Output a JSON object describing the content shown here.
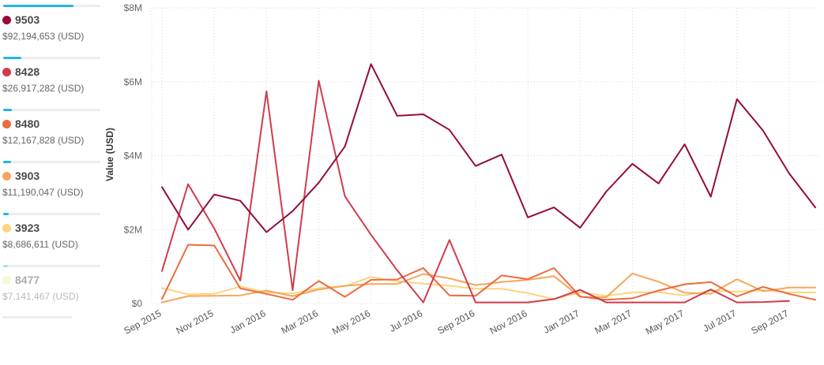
{
  "legend": [
    {
      "code": "9503",
      "amount": "$92,194,653 (USD)",
      "color": "#960b3e",
      "share": 0.72,
      "faded": false
    },
    {
      "code": "8428",
      "amount": "$26,917,282 (USD)",
      "color": "#d13b4d",
      "share": 0.19,
      "faded": false
    },
    {
      "code": "8480",
      "amount": "$12,167,828 (USD)",
      "color": "#ec6b3e",
      "share": 0.09,
      "faded": false
    },
    {
      "code": "3903",
      "amount": "$11,190,047 (USD)",
      "color": "#f6a65a",
      "share": 0.08,
      "faded": false
    },
    {
      "code": "3923",
      "amount": "$8,686,611 (USD)",
      "color": "#fbd57e",
      "share": 0.06,
      "faded": false
    },
    {
      "code": "8477",
      "amount": "$7,141,467 (USD)",
      "color": "#f4f1bf",
      "share": 0.05,
      "faded": true
    }
  ],
  "chart_data": {
    "type": "line",
    "ylabel": "Value (USD)",
    "xlabel": "",
    "ylim": [
      0,
      8000000
    ],
    "y_ticks": [
      0,
      2000000,
      4000000,
      6000000,
      8000000
    ],
    "y_tick_labels": [
      "$0",
      "$2M",
      "$4M",
      "$6M",
      "$8M"
    ],
    "x": [
      "2015-09",
      "2015-10",
      "2015-11",
      "2015-12",
      "2016-01",
      "2016-02",
      "2016-03",
      "2016-04",
      "2016-05",
      "2016-06",
      "2016-07",
      "2016-08",
      "2016-09",
      "2016-10",
      "2016-11",
      "2016-12",
      "2017-01",
      "2017-02",
      "2017-03",
      "2017-04",
      "2017-05",
      "2017-06",
      "2017-07",
      "2017-08",
      "2017-09",
      "2017-10"
    ],
    "x_tick_labels": [
      "Sep 2015",
      "Nov 2015",
      "Jan 2016",
      "Mar 2016",
      "May 2016",
      "Jul 2016",
      "Sep 2016",
      "Nov 2016",
      "Jan 2017",
      "Mar 2017",
      "May 2017",
      "Jul 2017",
      "Sep 2017"
    ],
    "grid": "dotted",
    "series": [
      {
        "name": "9503",
        "color": "#960b3e",
        "values": [
          3150000,
          2000000,
          2950000,
          2780000,
          1930000,
          2500000,
          3270000,
          4250000,
          6480000,
          5080000,
          5120000,
          4700000,
          3720000,
          4030000,
          2330000,
          2600000,
          2050000,
          3030000,
          3780000,
          3250000,
          4310000,
          2890000,
          5530000,
          4680000,
          3520000,
          2600000
        ]
      },
      {
        "name": "8428",
        "color": "#d13b4d",
        "values": [
          880000,
          3230000,
          2030000,
          620000,
          5740000,
          360000,
          6030000,
          2900000,
          1860000,
          900000,
          30000,
          1720000,
          30000,
          30000,
          30000,
          120000,
          370000,
          30000,
          30000,
          30000,
          30000,
          380000,
          30000,
          40000,
          70000,
          null
        ]
      },
      {
        "name": "8480",
        "color": "#ec6b3e",
        "values": [
          120000,
          1590000,
          1570000,
          410000,
          260000,
          100000,
          610000,
          180000,
          640000,
          650000,
          960000,
          220000,
          210000,
          760000,
          660000,
          960000,
          190000,
          100000,
          140000,
          350000,
          520000,
          580000,
          190000,
          450000,
          260000,
          100000
        ]
      },
      {
        "name": "3903",
        "color": "#f6a65a",
        "values": [
          30000,
          200000,
          210000,
          220000,
          350000,
          200000,
          380000,
          480000,
          530000,
          530000,
          800000,
          680000,
          500000,
          580000,
          640000,
          740000,
          180000,
          170000,
          810000,
          590000,
          290000,
          260000,
          660000,
          330000,
          430000,
          430000
        ]
      },
      {
        "name": "3923",
        "color": "#fbd57e",
        "values": [
          420000,
          250000,
          260000,
          460000,
          300000,
          270000,
          420000,
          470000,
          720000,
          600000,
          540000,
          480000,
          400000,
          400000,
          280000,
          120000,
          300000,
          210000,
          300000,
          300000,
          220000,
          350000,
          320000,
          360000,
          300000,
          300000
        ]
      }
    ]
  }
}
